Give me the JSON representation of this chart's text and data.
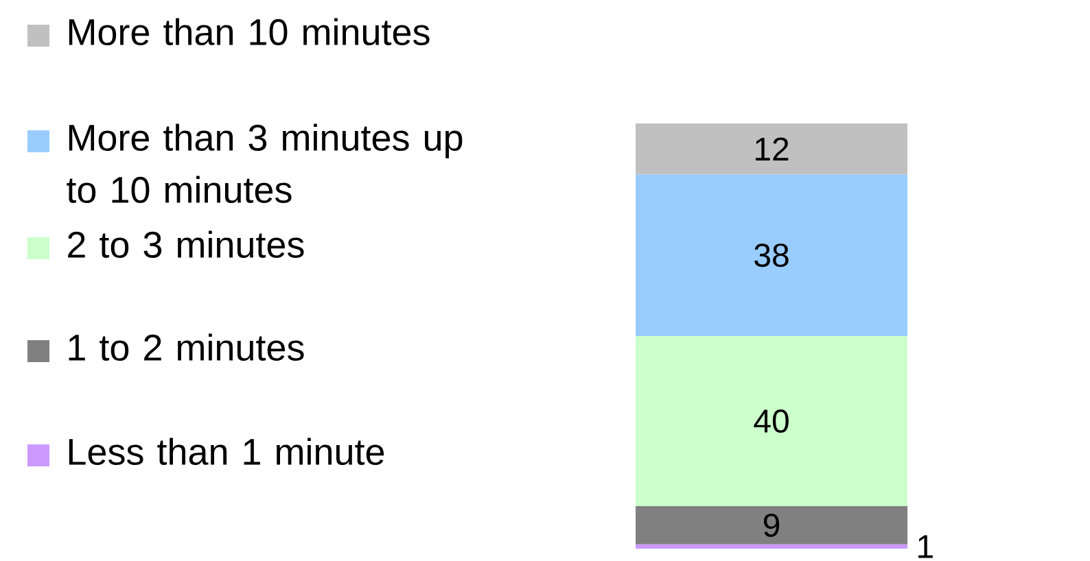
{
  "chart_data": {
    "type": "bar",
    "stacked": true,
    "categories": [
      null
    ],
    "data_labels": true,
    "legend": "left",
    "series": [
      {
        "name": "Less than 1 minute",
        "color": "#cc99ff",
        "values": [
          1
        ]
      },
      {
        "name": "1 to 2 minutes",
        "color": "#808080",
        "values": [
          9
        ]
      },
      {
        "name": "2 to 3 minutes",
        "color": "#ccffcc",
        "values": [
          40
        ]
      },
      {
        "name": "More than 3 minutes up to 10 minutes",
        "color": "#99ccff",
        "values": [
          38
        ]
      },
      {
        "name": "More than 10 minutes",
        "color": "#c0c0c0",
        "values": [
          12
        ]
      }
    ]
  }
}
